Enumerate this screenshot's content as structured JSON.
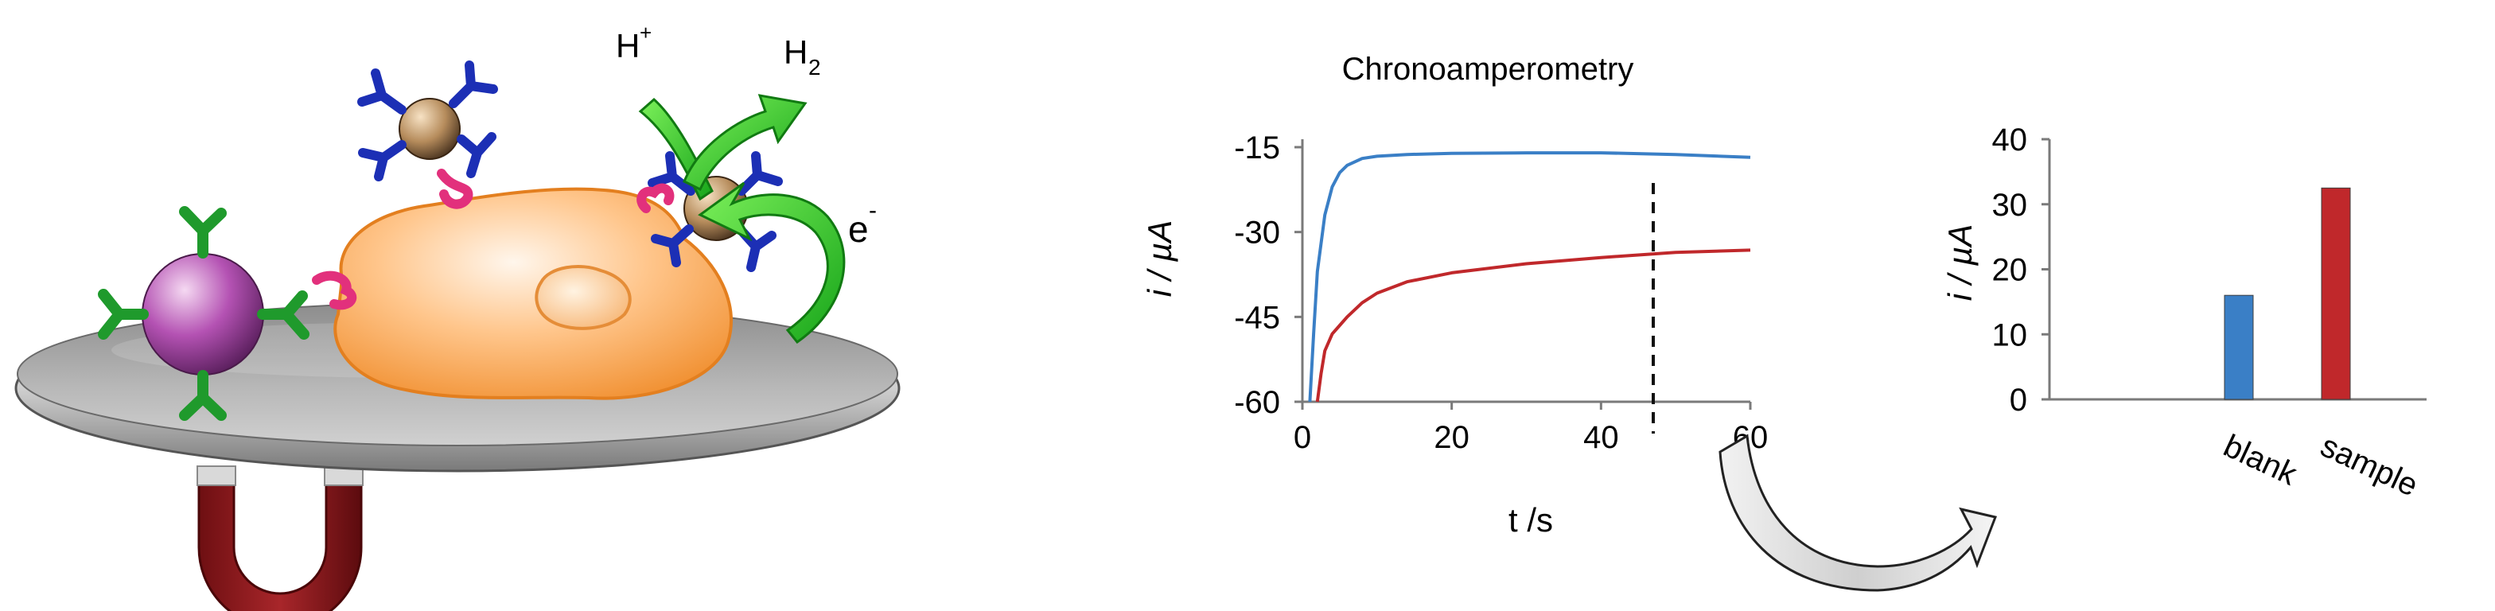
{
  "schematic": {
    "proton_label": "H",
    "proton_sup": "+",
    "hydrogen_label": "H",
    "hydrogen_sub": "2",
    "electron_label": "e",
    "electron_sup": "-"
  },
  "chart_data": [
    {
      "type": "line",
      "title": "Chronoamperometry",
      "xlabel": "t /s",
      "ylabel": "i / µA",
      "xlim": [
        0,
        60
      ],
      "ylim": [
        -60,
        -15
      ],
      "xticks": [
        "0",
        "20",
        "40",
        "60"
      ],
      "yticks": [
        "-15",
        "-30",
        "-45",
        "-60"
      ],
      "grid": false,
      "marker_x": 47,
      "series": [
        {
          "color": "#3a7fc6",
          "x": [
            1,
            1.5,
            2,
            3,
            4,
            5,
            6,
            8,
            10,
            14,
            20,
            30,
            40,
            50,
            60
          ],
          "y": [
            -60,
            -48,
            -37,
            -27,
            -22,
            -19.5,
            -18.2,
            -17,
            -16.6,
            -16.3,
            -16.1,
            -16,
            -16,
            -16.3,
            -16.8
          ]
        },
        {
          "color": "#c0282b",
          "x": [
            2,
            2.5,
            3,
            4,
            5,
            6,
            8,
            10,
            14,
            20,
            30,
            40,
            50,
            60
          ],
          "y": [
            -60,
            -55,
            -51,
            -48,
            -46.5,
            -45,
            -42.5,
            -40.8,
            -38.8,
            -37.2,
            -35.6,
            -34.5,
            -33.6,
            -33.2
          ]
        }
      ]
    },
    {
      "type": "bar",
      "ylabel": "i / µA",
      "ylim": [
        0,
        40
      ],
      "yticks": [
        "0",
        "10",
        "20",
        "30",
        "40"
      ],
      "categories": [
        "blank",
        "sample"
      ],
      "values": [
        16,
        32.5
      ],
      "colors": [
        "#3a7fc6",
        "#c0282b"
      ],
      "grid": false
    }
  ]
}
